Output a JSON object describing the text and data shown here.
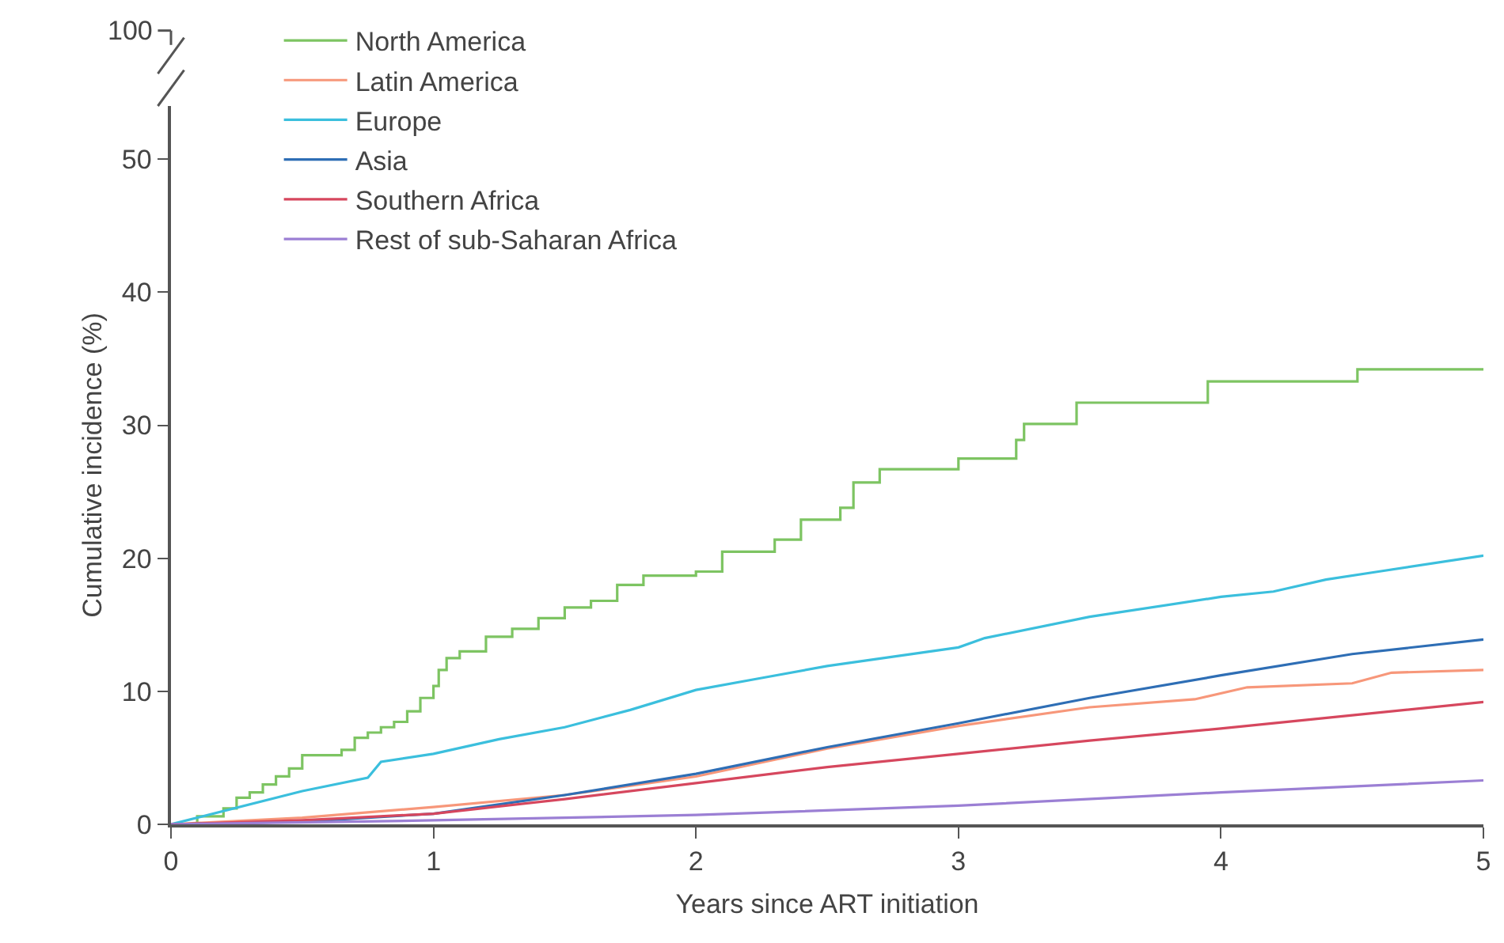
{
  "chart_data": {
    "type": "line",
    "xlabel": "Years since ART initiation",
    "ylabel": "Cumulative incidence (%)",
    "xlim": [
      0,
      5
    ],
    "xticks": [
      0,
      1,
      2,
      3,
      4,
      5
    ],
    "ylim": [
      0,
      54
    ],
    "yticks": [
      0,
      10,
      20,
      30,
      40,
      50
    ],
    "annotations": [
      "100"
    ],
    "legend": "top left",
    "marker": "none",
    "line_style": "solid",
    "series": [
      {
        "name": "North America",
        "color": "#7dc462",
        "type": "step",
        "x": [
          0,
          0.1,
          0.2,
          0.25,
          0.3,
          0.35,
          0.4,
          0.45,
          0.5,
          0.65,
          0.7,
          0.75,
          0.8,
          0.85,
          0.9,
          0.95,
          1.0,
          1.02,
          1.05,
          1.1,
          1.2,
          1.3,
          1.4,
          1.5,
          1.6,
          1.7,
          1.8,
          2.0,
          2.1,
          2.3,
          2.4,
          2.55,
          2.6,
          2.7,
          3.0,
          3.22,
          3.25,
          3.45,
          3.95,
          4.52,
          5.0
        ],
        "values": [
          0,
          0.6,
          1.2,
          2.0,
          2.4,
          3.0,
          3.6,
          4.2,
          5.2,
          5.6,
          6.5,
          6.9,
          7.3,
          7.7,
          8.5,
          9.5,
          10.4,
          11.6,
          12.5,
          13.0,
          14.1,
          14.7,
          15.5,
          16.3,
          16.8,
          18.0,
          18.7,
          19.0,
          20.5,
          21.4,
          22.9,
          23.8,
          25.7,
          26.7,
          27.5,
          28.9,
          30.1,
          31.7,
          33.3,
          34.2,
          34.2
        ]
      },
      {
        "name": "Latin America",
        "color": "#f7977a",
        "x": [
          0,
          0.5,
          1.0,
          1.5,
          2.0,
          2.5,
          3.0,
          3.5,
          3.9,
          4.1,
          4.5,
          4.65,
          5.0
        ],
        "values": [
          0,
          0.5,
          1.3,
          2.2,
          3.6,
          5.7,
          7.4,
          8.8,
          9.4,
          10.3,
          10.6,
          11.4,
          11.6
        ]
      },
      {
        "name": "Europe",
        "color": "#3bbfdd",
        "x": [
          0,
          0.5,
          0.75,
          0.8,
          1.0,
          1.25,
          1.5,
          1.75,
          2.0,
          2.25,
          2.5,
          2.75,
          3.0,
          3.1,
          3.5,
          4.0,
          4.2,
          4.4,
          4.6,
          5.0
        ],
        "values": [
          0,
          2.5,
          3.5,
          4.7,
          5.3,
          6.4,
          7.3,
          8.6,
          10.1,
          11.0,
          11.9,
          12.6,
          13.3,
          14.0,
          15.6,
          17.1,
          17.5,
          18.4,
          19.0,
          20.2
        ]
      },
      {
        "name": "Asia",
        "color": "#2e6eb5",
        "x": [
          0,
          0.5,
          1.0,
          1.5,
          2.0,
          2.5,
          3.0,
          3.5,
          4.0,
          4.5,
          5.0
        ],
        "values": [
          0,
          0.2,
          0.8,
          2.2,
          3.8,
          5.8,
          7.6,
          9.5,
          11.2,
          12.8,
          13.9
        ]
      },
      {
        "name": "Southern Africa",
        "color": "#d6475e",
        "x": [
          0,
          0.5,
          1.0,
          1.5,
          2.0,
          2.5,
          3.0,
          3.5,
          4.0,
          4.5,
          5.0
        ],
        "values": [
          0,
          0.3,
          0.8,
          1.9,
          3.1,
          4.3,
          5.3,
          6.3,
          7.2,
          8.2,
          9.2
        ]
      },
      {
        "name": "Rest of sub-Saharan Africa",
        "color": "#9b7fd4",
        "x": [
          0,
          1,
          2,
          3,
          4,
          5
        ],
        "values": [
          0,
          0.3,
          0.7,
          1.4,
          2.4,
          3.3
        ]
      }
    ]
  }
}
